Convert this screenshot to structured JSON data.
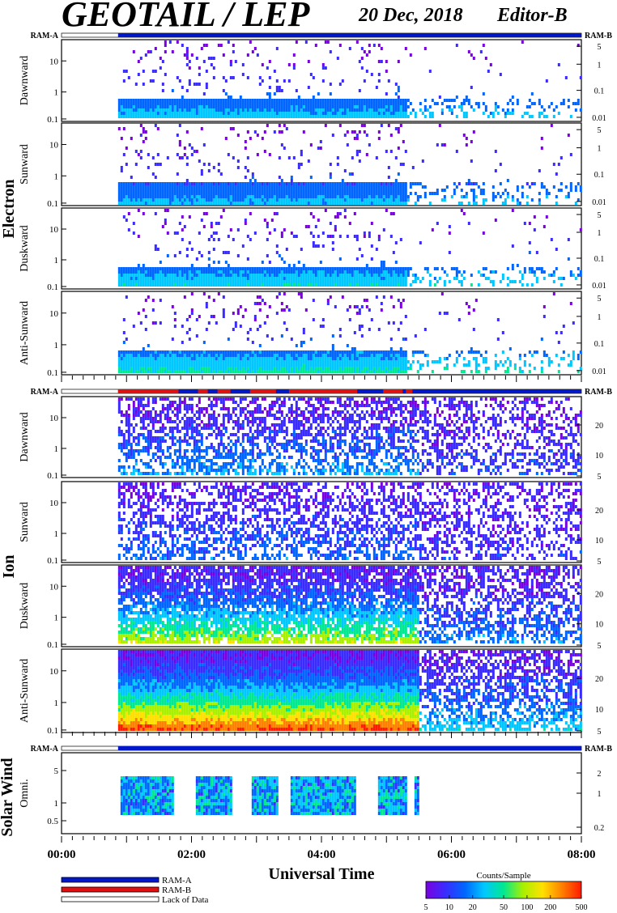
{
  "header": {
    "title": "GEOTAIL / LEP",
    "date": "20 Dec, 2018",
    "editor": "Editor-B"
  },
  "ram_labels": {
    "left": "RAM-A",
    "right": "RAM-B"
  },
  "groups": [
    {
      "id": "electron",
      "label": "Electron"
    },
    {
      "id": "ion",
      "label": "Ion"
    },
    {
      "id": "sw",
      "label": "Solar Wind"
    }
  ],
  "chart_data": {
    "type": "heatmap",
    "xlabel": "Universal Time",
    "x_ticks": [
      "00:00",
      "02:00",
      "04:00",
      "06:00",
      "08:00"
    ],
    "x_range_hours": [
      0,
      8
    ],
    "data_start_hour": 0.87,
    "colorbar": {
      "title": "Counts/Sample",
      "ticks": [
        "5",
        "10",
        "20",
        "50",
        "100",
        "200",
        "500"
      ],
      "range": [
        5,
        500
      ],
      "colors": [
        "#7a00e0",
        "#3a2cff",
        "#0066ff",
        "#00c8ff",
        "#00e890",
        "#a8f000",
        "#ffe000",
        "#ff8000",
        "#ff1a00"
      ]
    },
    "legend": [
      {
        "label": "RAM-A",
        "color": "#0018c8"
      },
      {
        "label": "RAM-B",
        "color": "#e01010"
      },
      {
        "label": "Lack of Data",
        "color": "#ffffff"
      }
    ],
    "panels": [
      {
        "group": "electron",
        "label": "Dawnward",
        "left_ticks": [
          "10",
          "1",
          "0.1"
        ],
        "right_ticks": [
          "5",
          "1",
          "0.1",
          "0.01"
        ],
        "intensity": 0.35
      },
      {
        "group": "electron",
        "label": "Sunward",
        "left_ticks": [
          "10",
          "1",
          "0.1"
        ],
        "right_ticks": [
          "5",
          "1",
          "0.1",
          "0.01"
        ],
        "intensity": 0.3
      },
      {
        "group": "electron",
        "label": "Duskward",
        "left_ticks": [
          "10",
          "1",
          "0.1"
        ],
        "right_ticks": [
          "5",
          "1",
          "0.1",
          "0.01"
        ],
        "intensity": 0.4
      },
      {
        "group": "electron",
        "label": "Anti-Sunward",
        "left_ticks": [
          "10",
          "1",
          "0.1"
        ],
        "right_ticks": [
          "5",
          "1",
          "0.1",
          "0.01"
        ],
        "intensity": 0.42
      },
      {
        "group": "ion",
        "label": "Dawnward",
        "left_ticks": [
          "10",
          "1",
          "0.1"
        ],
        "right_ticks": [
          "20",
          "10",
          "5"
        ],
        "intensity": 0.25
      },
      {
        "group": "ion",
        "label": "Sunward",
        "left_ticks": [
          "10",
          "1",
          "0.1"
        ],
        "right_ticks": [
          "20",
          "10",
          "5"
        ],
        "intensity": 0.18
      },
      {
        "group": "ion",
        "label": "Duskward",
        "left_ticks": [
          "10",
          "1",
          "0.1"
        ],
        "right_ticks": [
          "20",
          "10",
          "5"
        ],
        "intensity": 0.6
      },
      {
        "group": "ion",
        "label": "Anti-Sunward",
        "left_ticks": [
          "10",
          "1",
          "0.1"
        ],
        "right_ticks": [
          "20",
          "10",
          "5"
        ],
        "intensity": 0.85
      },
      {
        "group": "sw",
        "label": "Omni.",
        "left_ticks": [
          "5",
          "1",
          "0.5"
        ],
        "right_ticks": [
          "2",
          "1",
          "0.2"
        ],
        "intensity": 0.3
      }
    ],
    "ram_segments_ion": [
      {
        "mode": "RAM-B",
        "from": 0.87,
        "to": 1.8
      },
      {
        "mode": "RAM-B",
        "from": 2.1,
        "to": 2.25
      },
      {
        "mode": "RAM-B",
        "from": 2.4,
        "to": 2.6
      },
      {
        "mode": "RAM-B",
        "from": 2.9,
        "to": 3.3
      },
      {
        "mode": "RAM-B",
        "from": 3.5,
        "to": 4.55
      },
      {
        "mode": "RAM-B",
        "from": 4.95,
        "to": 5.25
      },
      {
        "mode": "RAM-B",
        "from": 5.3,
        "to": 5.4
      }
    ]
  }
}
